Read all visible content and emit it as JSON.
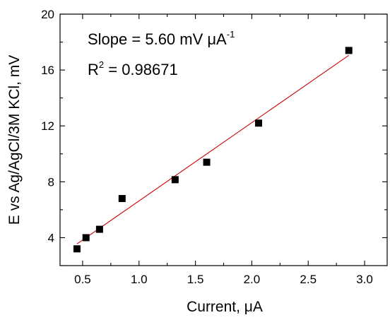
{
  "chart_data": {
    "type": "scatter",
    "xlabel": "Current, μA",
    "ylabel": "E vs Ag/AgCl/3M KCl, mV",
    "xlim": [
      0.3,
      3.2
    ],
    "ylim": [
      2,
      20
    ],
    "xticks": [
      0.5,
      1.0,
      1.5,
      2.0,
      2.5,
      3.0
    ],
    "xtick_labels": [
      "0.5",
      "1.0",
      "1.5",
      "2.0",
      "2.5",
      "3.0"
    ],
    "yticks": [
      4,
      8,
      12,
      16,
      20
    ],
    "ytick_labels": [
      "4",
      "8",
      "12",
      "16",
      "20"
    ],
    "series": [
      {
        "marker": "square",
        "color": "#000000",
        "points": [
          {
            "x": 0.45,
            "y": 3.2
          },
          {
            "x": 0.53,
            "y": 4.0
          },
          {
            "x": 0.65,
            "y": 4.6
          },
          {
            "x": 0.85,
            "y": 6.8
          },
          {
            "x": 1.32,
            "y": 8.15
          },
          {
            "x": 1.6,
            "y": 9.4
          },
          {
            "x": 2.06,
            "y": 12.2
          },
          {
            "x": 2.86,
            "y": 17.4
          }
        ]
      }
    ],
    "fit_line": {
      "color": "#cc0000",
      "from": {
        "x": 0.45,
        "y": 3.55
      },
      "to": {
        "x": 2.86,
        "y": 17.05
      }
    },
    "annotations": {
      "slope_prefix": "Slope = 5.60 mV μA",
      "slope_exponent": "-1",
      "r2_base": "R",
      "r2_exponent": "2",
      "r2_value": " = 0.98671"
    },
    "grid": false,
    "legend": "none"
  }
}
